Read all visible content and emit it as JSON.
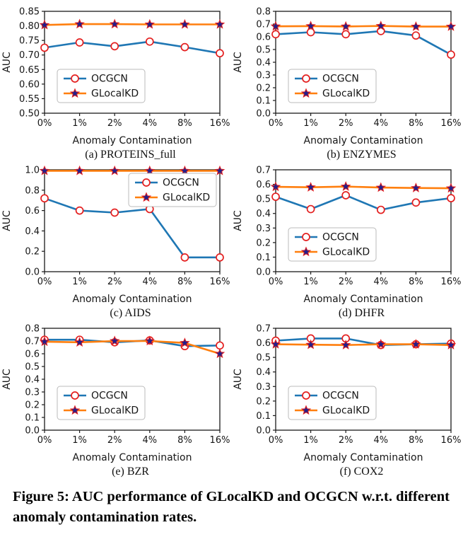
{
  "figure_caption": "Figure 5: AUC performance of GLocalKD and OCGCN w.r.t. different anomaly contamination rates.",
  "styles": {
    "ocgcn_color": "#1f77b4",
    "glocalkd_color": "#ff7f0e",
    "marker_edge": "#e41f1f",
    "star_fill": "#21218c",
    "axis_color": "#1a1a1a",
    "legend_border": "#bbbbbb"
  },
  "chart_data": [
    {
      "type": "line",
      "title": "(a) PROTEINS_full",
      "xlabel": "Anomaly Contamination",
      "ylabel": "AUC",
      "categories": [
        "0%",
        "1%",
        "2%",
        "4%",
        "8%",
        "16%"
      ],
      "ylim": [
        0.5,
        0.85
      ],
      "ytick_step": 0.05,
      "ytick_decimals": 2,
      "legend_position": "lower-left",
      "series": [
        {
          "name": "OCGCN",
          "marker": "circle",
          "color": "#1f77b4",
          "values": [
            0.725,
            0.743,
            0.73,
            0.746,
            0.727,
            0.706
          ]
        },
        {
          "name": "GLocalKD",
          "marker": "star",
          "color": "#ff7f0e",
          "values": [
            0.803,
            0.806,
            0.806,
            0.805,
            0.805,
            0.805
          ]
        }
      ]
    },
    {
      "type": "line",
      "title": "(b) ENZYMES",
      "xlabel": "Anomaly Contamination",
      "ylabel": "AUC",
      "categories": [
        "0%",
        "1%",
        "2%",
        "4%",
        "8%",
        "16%"
      ],
      "ylim": [
        0.0,
        0.8
      ],
      "ytick_step": 0.1,
      "ytick_decimals": 1,
      "legend_position": "lower-left",
      "series": [
        {
          "name": "OCGCN",
          "marker": "circle",
          "color": "#1f77b4",
          "values": [
            0.62,
            0.636,
            0.62,
            0.645,
            0.61,
            0.46
          ]
        },
        {
          "name": "GLocalKD",
          "marker": "star",
          "color": "#ff7f0e",
          "values": [
            0.682,
            0.684,
            0.681,
            0.685,
            0.68,
            0.68
          ]
        }
      ]
    },
    {
      "type": "line",
      "title": "(c) AIDS",
      "xlabel": "Anomaly Contamination",
      "ylabel": "AUC",
      "categories": [
        "0%",
        "1%",
        "2%",
        "4%",
        "8%",
        "16%"
      ],
      "ylim": [
        0.0,
        1.0
      ],
      "ytick_step": 0.2,
      "ytick_decimals": 1,
      "legend_position": "upper-right",
      "series": [
        {
          "name": "OCGCN",
          "marker": "circle",
          "color": "#1f77b4",
          "values": [
            0.72,
            0.6,
            0.58,
            0.615,
            0.14,
            0.14
          ]
        },
        {
          "name": "GLocalKD",
          "marker": "star",
          "color": "#ff7f0e",
          "values": [
            0.99,
            0.99,
            0.99,
            0.99,
            0.99,
            0.99
          ]
        }
      ]
    },
    {
      "type": "line",
      "title": "(d) DHFR",
      "xlabel": "Anomaly Contamination",
      "ylabel": "AUC",
      "categories": [
        "0%",
        "1%",
        "2%",
        "4%",
        "8%",
        "16%"
      ],
      "ylim": [
        0.0,
        0.7
      ],
      "ytick_step": 0.1,
      "ytick_decimals": 1,
      "legend_position": "lower-left",
      "series": [
        {
          "name": "OCGCN",
          "marker": "circle",
          "color": "#1f77b4",
          "values": [
            0.515,
            0.43,
            0.525,
            0.425,
            0.475,
            0.505
          ]
        },
        {
          "name": "GLocalKD",
          "marker": "star",
          "color": "#ff7f0e",
          "values": [
            0.583,
            0.58,
            0.585,
            0.578,
            0.575,
            0.573
          ]
        }
      ]
    },
    {
      "type": "line",
      "title": "(e) BZR",
      "xlabel": "Anomaly Contamination",
      "ylabel": "AUC",
      "categories": [
        "0%",
        "1%",
        "2%",
        "4%",
        "8%",
        "16%"
      ],
      "ylim": [
        0.0,
        0.8
      ],
      "ytick_step": 0.1,
      "ytick_decimals": 1,
      "legend_position": "lower-left",
      "series": [
        {
          "name": "OCGCN",
          "marker": "circle",
          "color": "#1f77b4",
          "values": [
            0.71,
            0.71,
            0.69,
            0.705,
            0.66,
            0.665
          ]
        },
        {
          "name": "GLocalKD",
          "marker": "star",
          "color": "#ff7f0e",
          "values": [
            0.695,
            0.69,
            0.7,
            0.7,
            0.685,
            0.6
          ]
        }
      ]
    },
    {
      "type": "line",
      "title": "(f) COX2",
      "xlabel": "Anomaly Contamination",
      "ylabel": "AUC",
      "categories": [
        "0%",
        "1%",
        "2%",
        "4%",
        "8%",
        "16%"
      ],
      "ylim": [
        0.0,
        0.7
      ],
      "ytick_step": 0.1,
      "ytick_decimals": 1,
      "legend_position": "lower-left",
      "series": [
        {
          "name": "OCGCN",
          "marker": "circle",
          "color": "#1f77b4",
          "values": [
            0.615,
            0.63,
            0.63,
            0.585,
            0.59,
            0.595
          ]
        },
        {
          "name": "GLocalKD",
          "marker": "star",
          "color": "#ff7f0e",
          "values": [
            0.59,
            0.587,
            0.585,
            0.59,
            0.59,
            0.585
          ]
        }
      ]
    }
  ]
}
